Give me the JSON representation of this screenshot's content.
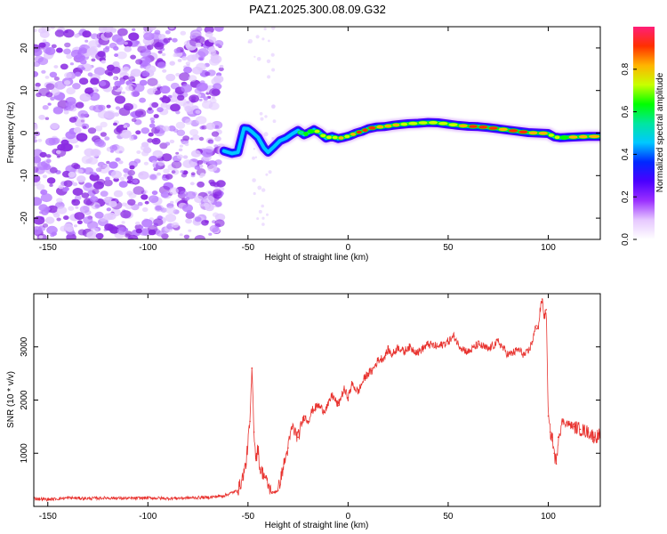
{
  "title": "PAZ1.2025.300.08.09.G32",
  "chart_data": [
    {
      "type": "heatmap",
      "title": "PAZ1.2025.300.08.09.G32",
      "xlabel": "Height of straight line (km)",
      "ylabel": "Frequency (Hz)",
      "xlim": [
        -157,
        126
      ],
      "ylim": [
        -25,
        25
      ],
      "xticks": [
        -150,
        -100,
        -50,
        0,
        50,
        100
      ],
      "xtick_labels": [
        "-150",
        "-100",
        "-50",
        "0",
        "50",
        "100"
      ],
      "yticks": [
        -20,
        -10,
        0,
        10,
        20
      ],
      "ytick_labels": [
        "-20",
        "-10",
        "0",
        "10",
        "20"
      ],
      "noise_region_x": [
        -157,
        -63
      ],
      "ridge": {
        "name": "dominant frequency",
        "x": [
          -62,
          -58,
          -55,
          -52,
          -50,
          -48,
          -45,
          -42,
          -40,
          -37,
          -34,
          -31,
          -28,
          -25,
          -22,
          -20,
          -17,
          -14,
          -11,
          -8,
          -5,
          -2,
          1,
          4,
          7,
          10,
          14,
          18,
          22,
          26,
          30,
          35,
          40,
          45,
          50,
          55,
          60,
          65,
          70,
          75,
          80,
          85,
          90,
          95,
          100,
          103,
          106,
          110,
          115,
          120,
          126
        ],
        "freq_hz": [
          -4.2,
          -4.8,
          -4.5,
          1.1,
          1.0,
          0.3,
          -1.0,
          -3.5,
          -4.5,
          -3.2,
          -1.8,
          -1.2,
          -0.2,
          0.6,
          -0.4,
          0.0,
          0.8,
          0.0,
          -1.2,
          -0.8,
          -1.3,
          -1.0,
          -0.6,
          0.0,
          0.4,
          1.0,
          1.4,
          1.5,
          1.8,
          2.0,
          2.2,
          2.3,
          2.5,
          2.4,
          2.1,
          1.8,
          1.6,
          1.5,
          1.3,
          1.0,
          0.7,
          0.4,
          0.1,
          0.0,
          -0.1,
          -0.9,
          -1.1,
          -1.0,
          -0.9,
          -0.8,
          -0.8
        ],
        "amplitude": [
          0.35,
          0.45,
          0.45,
          0.3,
          0.3,
          0.35,
          0.35,
          0.4,
          0.45,
          0.4,
          0.35,
          0.4,
          0.45,
          0.55,
          0.6,
          0.65,
          0.7,
          0.7,
          0.75,
          0.75,
          0.8,
          0.75,
          0.85,
          0.9,
          0.9,
          0.9,
          0.85,
          0.85,
          0.8,
          0.75,
          0.75,
          0.75,
          0.7,
          0.7,
          0.75,
          0.8,
          0.95,
          0.95,
          0.9,
          0.85,
          0.95,
          0.9,
          0.85,
          0.8,
          0.75,
          0.7,
          0.65,
          0.8,
          0.85,
          0.85,
          0.8
        ]
      },
      "colorbar": {
        "label": "Normalized spectral amplitude",
        "range": [
          0,
          1
        ],
        "ticks": [
          0.0,
          0.2,
          0.4,
          0.6,
          0.8
        ],
        "tick_labels": [
          "0.0",
          "0.2",
          "0.4",
          "0.6",
          "0.8"
        ],
        "colors": [
          "#ffffff",
          "#e6c8ff",
          "#9b30ff",
          "#4b00ff",
          "#0028ff",
          "#00c8ff",
          "#00e6a0",
          "#00ff00",
          "#c8ff00",
          "#ffb400",
          "#ff3000",
          "#ff1e78"
        ]
      }
    },
    {
      "type": "line",
      "xlabel": "Height of straight line (km)",
      "ylabel": "SNR (10 * v/v)",
      "xlim": [
        -157,
        126
      ],
      "ylim": [
        0,
        4000
      ],
      "xticks": [
        -150,
        -100,
        -50,
        0,
        50,
        100
      ],
      "xtick_labels": [
        "-150",
        "-100",
        "-50",
        "0",
        "50",
        "100"
      ],
      "yticks": [
        1000,
        2000,
        3000
      ],
      "ytick_labels": [
        "1000",
        "2000",
        "3000"
      ],
      "series": [
        {
          "name": "SNR",
          "color": "#e8322e",
          "x": [
            -157,
            -150,
            -140,
            -130,
            -120,
            -110,
            -100,
            -90,
            -80,
            -70,
            -62,
            -55,
            -53,
            -51,
            -49,
            -48,
            -47,
            -46,
            -45,
            -44,
            -42,
            -40,
            -38,
            -35,
            -32,
            -30,
            -28,
            -25,
            -22,
            -20,
            -18,
            -15,
            -12,
            -10,
            -8,
            -5,
            -2,
            0,
            2,
            5,
            8,
            10,
            12,
            15,
            18,
            20,
            22,
            25,
            28,
            30,
            35,
            40,
            45,
            50,
            53,
            55,
            58,
            60,
            65,
            70,
            75,
            80,
            83,
            85,
            88,
            90,
            92,
            94,
            95,
            96,
            97,
            98,
            99,
            100,
            101,
            102,
            103,
            104,
            105,
            107,
            110,
            113,
            116,
            120,
            123,
            126
          ],
          "values": [
            150,
            130,
            160,
            150,
            160,
            150,
            160,
            150,
            160,
            170,
            200,
            300,
            500,
            800,
            1600,
            2600,
            1400,
            900,
            1100,
            700,
            600,
            400,
            250,
            300,
            800,
            1100,
            1500,
            1300,
            1700,
            1600,
            1800,
            1900,
            1800,
            1900,
            2100,
            1900,
            2200,
            2050,
            2300,
            2150,
            2400,
            2500,
            2550,
            2750,
            2800,
            2950,
            2850,
            3000,
            2900,
            3000,
            2900,
            3050,
            3000,
            3100,
            3200,
            3050,
            2950,
            2900,
            3050,
            2950,
            3100,
            2850,
            2900,
            2950,
            2850,
            2900,
            3100,
            3400,
            3350,
            3700,
            3900,
            3550,
            3700,
            1700,
            1400,
            1300,
            1000,
            800,
            1300,
            1600,
            1550,
            1500,
            1450,
            1400,
            1300,
            1350
          ]
        }
      ]
    }
  ]
}
